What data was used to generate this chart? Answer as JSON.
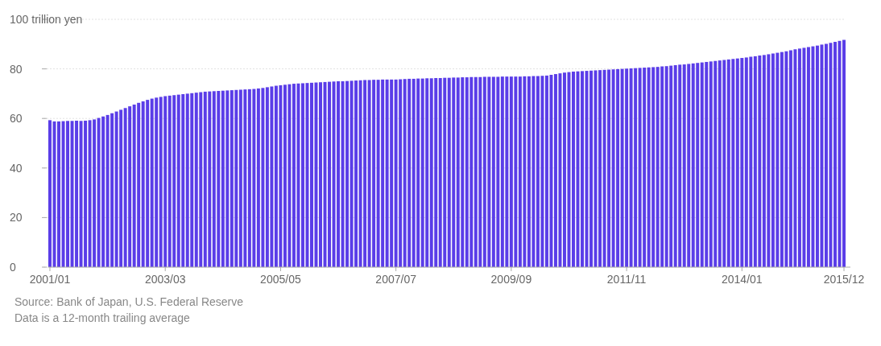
{
  "chart_data": {
    "type": "bar",
    "categories": [
      "2001/01",
      null,
      null,
      null,
      null,
      null,
      null,
      null,
      null,
      null,
      null,
      null,
      null,
      null,
      null,
      null,
      null,
      null,
      null,
      null,
      null,
      null,
      null,
      null,
      null,
      null,
      "2003/03",
      null,
      null,
      null,
      null,
      null,
      null,
      null,
      null,
      null,
      null,
      null,
      null,
      null,
      null,
      null,
      null,
      null,
      null,
      null,
      null,
      null,
      null,
      null,
      null,
      null,
      "2005/05",
      null,
      null,
      null,
      null,
      null,
      null,
      null,
      null,
      null,
      null,
      null,
      null,
      null,
      null,
      null,
      null,
      null,
      null,
      null,
      null,
      null,
      null,
      null,
      null,
      null,
      "2007/07",
      null,
      null,
      null,
      null,
      null,
      null,
      null,
      null,
      null,
      null,
      null,
      null,
      null,
      null,
      null,
      null,
      null,
      null,
      null,
      null,
      null,
      null,
      null,
      null,
      null,
      "2009/09",
      null,
      null,
      null,
      null,
      null,
      null,
      null,
      null,
      null,
      null,
      null,
      null,
      null,
      null,
      null,
      null,
      null,
      null,
      null,
      null,
      null,
      null,
      null,
      null,
      null,
      "2011/11",
      null,
      null,
      null,
      null,
      null,
      null,
      null,
      null,
      null,
      null,
      null,
      null,
      null,
      null,
      null,
      null,
      null,
      null,
      null,
      null,
      null,
      null,
      null,
      null,
      null,
      "2014/01",
      null,
      null,
      null,
      null,
      null,
      null,
      null,
      null,
      null,
      null,
      null,
      null,
      null,
      null,
      null,
      null,
      null,
      null,
      null,
      null,
      null,
      null,
      "2015/12"
    ],
    "values": [
      59.3,
      58.8,
      58.8,
      58.9,
      59.0,
      59.0,
      59.1,
      59.0,
      59.1,
      59.3,
      59.6,
      60.2,
      60.8,
      61.4,
      62.1,
      62.8,
      63.5,
      64.2,
      64.9,
      65.6,
      66.3,
      66.9,
      67.5,
      68.0,
      68.4,
      68.7,
      69.0,
      69.2,
      69.4,
      69.6,
      69.8,
      70.0,
      70.2,
      70.4,
      70.6,
      70.8,
      70.9,
      71.0,
      71.1,
      71.2,
      71.3,
      71.4,
      71.5,
      71.6,
      71.7,
      71.8,
      71.9,
      72.1,
      72.3,
      72.6,
      72.9,
      73.2,
      73.4,
      73.6,
      73.8,
      74.0,
      74.1,
      74.2,
      74.3,
      74.4,
      74.5,
      74.6,
      74.7,
      74.8,
      74.9,
      75.0,
      75.0,
      75.1,
      75.2,
      75.3,
      75.4,
      75.5,
      75.5,
      75.6,
      75.6,
      75.7,
      75.7,
      75.7,
      75.7,
      75.8,
      75.9,
      76.0,
      76.0,
      76.1,
      76.1,
      76.2,
      76.2,
      76.3,
      76.3,
      76.4,
      76.4,
      76.5,
      76.5,
      76.6,
      76.6,
      76.7,
      76.7,
      76.7,
      76.8,
      76.8,
      76.8,
      76.8,
      76.9,
      76.9,
      76.9,
      76.9,
      76.9,
      77.0,
      77.0,
      77.1,
      77.1,
      77.2,
      77.3,
      77.6,
      77.9,
      78.2,
      78.5,
      78.7,
      78.9,
      79.0,
      79.1,
      79.2,
      79.3,
      79.4,
      79.5,
      79.6,
      79.7,
      79.8,
      79.9,
      80.0,
      80.1,
      80.2,
      80.3,
      80.4,
      80.5,
      80.6,
      80.7,
      80.8,
      81.0,
      81.1,
      81.3,
      81.5,
      81.7,
      81.8,
      82.0,
      82.2,
      82.4,
      82.6,
      82.8,
      83.0,
      83.2,
      83.4,
      83.6,
      83.8,
      84.0,
      84.2,
      84.4,
      84.6,
      84.9,
      85.1,
      85.4,
      85.6,
      85.9,
      86.2,
      86.5,
      86.8,
      87.1,
      87.5,
      87.9,
      88.2,
      88.5,
      88.8,
      89.1,
      89.4,
      89.8,
      90.1,
      90.5,
      90.9,
      91.3,
      91.7
    ],
    "color": "#5a3de8",
    "ylim": [
      0,
      100
    ],
    "yticks": [
      0,
      20,
      40,
      60,
      80,
      {
        "value": 100,
        "label": "100 trillion yen"
      }
    ],
    "grid": "y",
    "annotations": [
      "Source: Bank of Japan, U.S. Federal Reserve",
      "Data is a 12-month trailing average"
    ]
  }
}
